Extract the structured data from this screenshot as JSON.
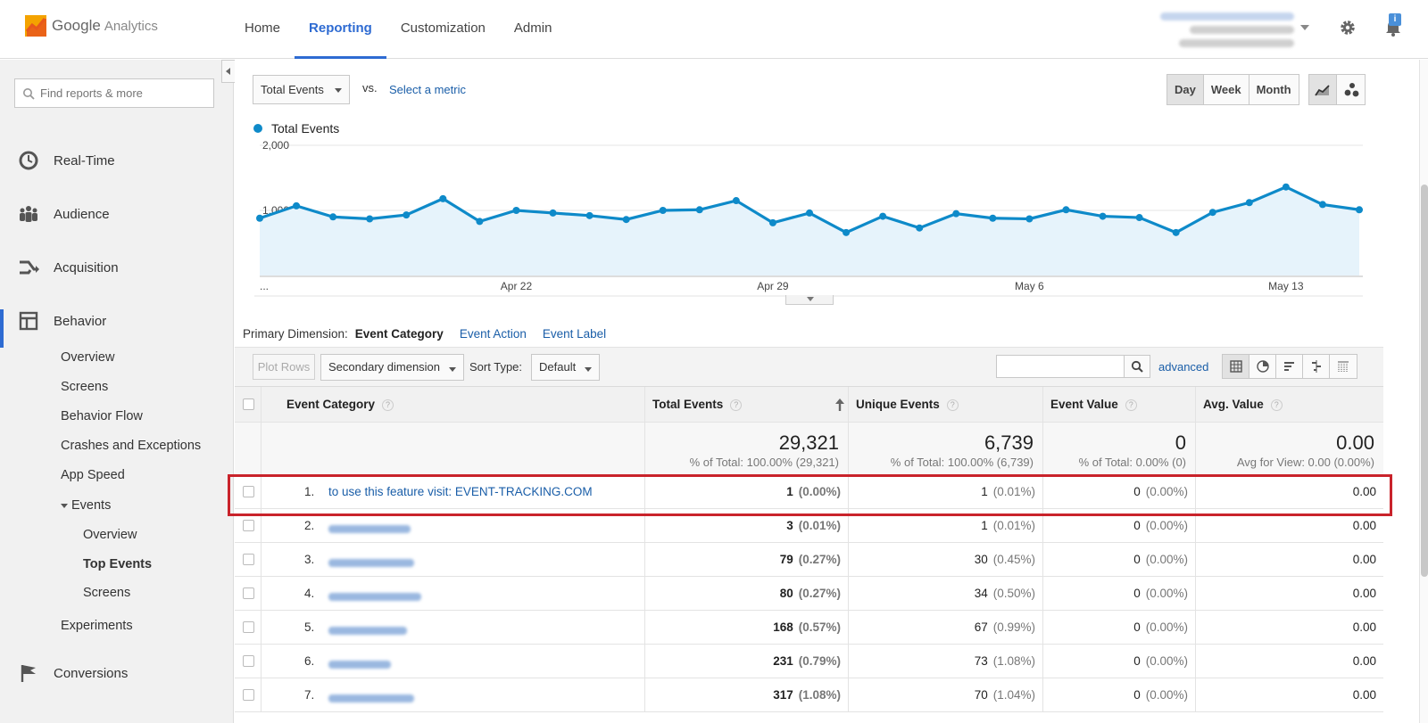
{
  "header": {
    "logo_text": "Google",
    "logo_sub": "Analytics",
    "nav": [
      "Home",
      "Reporting",
      "Customization",
      "Admin"
    ],
    "active_nav": "Reporting",
    "notification_count": "i"
  },
  "sidebar": {
    "search_placeholder": "Find reports & more",
    "main_items": [
      "Real-Time",
      "Audience",
      "Acquisition",
      "Behavior",
      "Conversions"
    ],
    "behavior_items": [
      "Overview",
      "Screens",
      "Behavior Flow",
      "Crashes and Exceptions",
      "App Speed"
    ],
    "events_label": "Events",
    "events_items": [
      "Overview",
      "Top Events",
      "Screens"
    ],
    "experiments_label": "Experiments"
  },
  "controls": {
    "metric": "Total Events",
    "vs": "vs.",
    "select_metric": "Select a metric",
    "periods": [
      "Day",
      "Week",
      "Month"
    ],
    "active_period": "Day"
  },
  "chart_data": {
    "type": "line",
    "legend": "Total Events",
    "y_tick_labels": [
      "2,000",
      "1,000"
    ],
    "ylim": [
      0,
      2000
    ],
    "x_tick_labels": [
      "...",
      "Apr 22",
      "Apr 29",
      "May 6",
      "May 13"
    ],
    "series": [
      {
        "name": "Total Events",
        "color": "#0e8ac9",
        "values": [
          880,
          1070,
          900,
          870,
          930,
          1180,
          830,
          1000,
          960,
          920,
          860,
          1000,
          1010,
          1150,
          810,
          960,
          660,
          910,
          730,
          950,
          880,
          870,
          1010,
          910,
          890,
          660,
          970,
          1120,
          1360,
          1090,
          1010
        ]
      }
    ]
  },
  "table": {
    "primary_dimension_label": "Primary Dimension:",
    "dimensions": [
      "Event Category",
      "Event Action",
      "Event Label"
    ],
    "plot_rows": "Plot Rows",
    "secondary_dimension": "Secondary dimension",
    "sort_type_label": "Sort Type:",
    "sort_type": "Default",
    "advanced": "advanced",
    "columns": [
      "Event Category",
      "Total Events",
      "Unique Events",
      "Event Value",
      "Avg. Value"
    ],
    "totals": {
      "total_events": "29,321",
      "total_events_sub": "% of Total: 100.00% (29,321)",
      "unique_events": "6,739",
      "unique_events_sub": "% of Total: 100.00% (6,739)",
      "event_value": "0",
      "event_value_sub": "% of Total: 0.00% (0)",
      "avg_value": "0.00",
      "avg_value_sub": "Avg for View: 0.00 (0.00%)"
    },
    "rows": [
      {
        "num": "1.",
        "category": "to use this feature visit: EVENT-TRACKING.COM",
        "total": "1",
        "total_pct": "(0.00%)",
        "unique": "1",
        "unique_pct": "(0.01%)",
        "value": "0",
        "value_pct": "(0.00%)",
        "avg": "0.00"
      },
      {
        "num": "2.",
        "category": "",
        "total": "3",
        "total_pct": "(0.01%)",
        "unique": "1",
        "unique_pct": "(0.01%)",
        "value": "0",
        "value_pct": "(0.00%)",
        "avg": "0.00"
      },
      {
        "num": "3.",
        "category": "",
        "total": "79",
        "total_pct": "(0.27%)",
        "unique": "30",
        "unique_pct": "(0.45%)",
        "value": "0",
        "value_pct": "(0.00%)",
        "avg": "0.00"
      },
      {
        "num": "4.",
        "category": "",
        "total": "80",
        "total_pct": "(0.27%)",
        "unique": "34",
        "unique_pct": "(0.50%)",
        "value": "0",
        "value_pct": "(0.00%)",
        "avg": "0.00"
      },
      {
        "num": "5.",
        "category": "",
        "total": "168",
        "total_pct": "(0.57%)",
        "unique": "67",
        "unique_pct": "(0.99%)",
        "value": "0",
        "value_pct": "(0.00%)",
        "avg": "0.00"
      },
      {
        "num": "6.",
        "category": "",
        "total": "231",
        "total_pct": "(0.79%)",
        "unique": "73",
        "unique_pct": "(1.08%)",
        "value": "0",
        "value_pct": "(0.00%)",
        "avg": "0.00"
      },
      {
        "num": "7.",
        "category": "",
        "total": "317",
        "total_pct": "(1.08%)",
        "unique": "70",
        "unique_pct": "(1.04%)",
        "value": "0",
        "value_pct": "(0.00%)",
        "avg": "0.00"
      }
    ]
  }
}
